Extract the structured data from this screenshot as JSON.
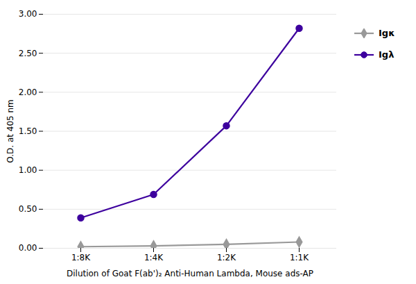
{
  "chart_data": {
    "type": "line",
    "categories": [
      "1:8K",
      "1:4K",
      "1:2K",
      "1:1K"
    ],
    "series": [
      {
        "name": "Igκ",
        "color": "#999999",
        "marker": "diamond",
        "values": [
          0.02,
          0.03,
          0.05,
          0.08
        ]
      },
      {
        "name": "Igλ",
        "color": "#3d009e",
        "marker": "circle",
        "values": [
          0.39,
          0.69,
          1.57,
          2.82
        ]
      }
    ],
    "xlabel": "Dilution of Goat F(ab')₂ Anti-Human Lambda, Mouse ads-AP",
    "ylabel": "O.D. at 405 nm",
    "ylim": [
      0.0,
      3.0
    ],
    "yticks": [
      {
        "value": 0.0,
        "label": "0.00"
      },
      {
        "value": 0.5,
        "label": "0.50"
      },
      {
        "value": 1.0,
        "label": "1.00"
      },
      {
        "value": 1.5,
        "label": "1.50"
      },
      {
        "value": 2.0,
        "label": "2.00"
      },
      {
        "value": 2.5,
        "label": "2.50"
      },
      {
        "value": 3.0,
        "label": "3.00"
      }
    ],
    "grid": true,
    "legend": "right"
  }
}
